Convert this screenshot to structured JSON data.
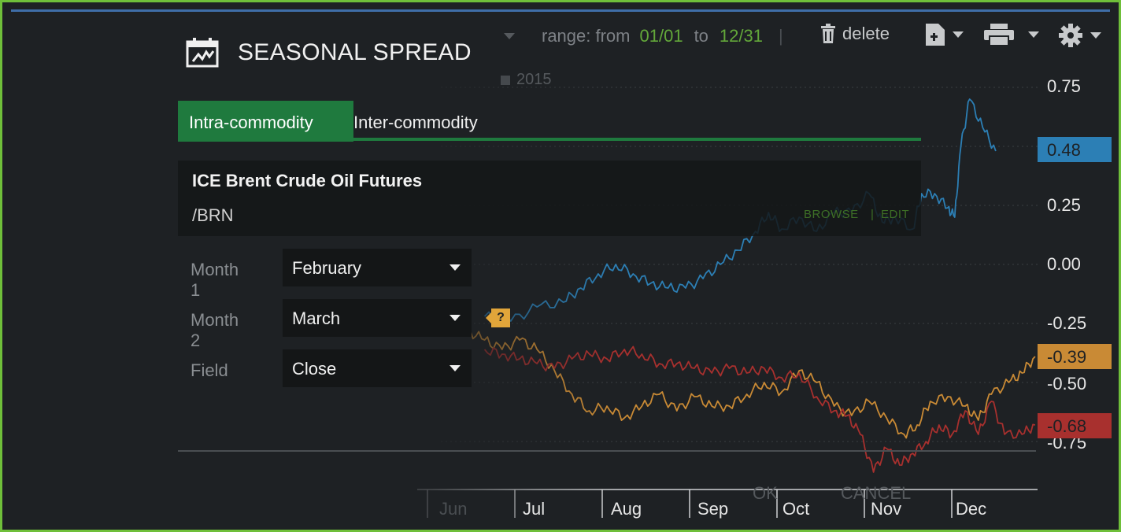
{
  "dialog": {
    "title": "SEASONAL SPREAD",
    "tabs": [
      "Intra-commodity",
      "Inter-commodity"
    ],
    "contract": {
      "name": "ICE Brent Crude Oil Futures",
      "symbol": "/BRN",
      "browse": "BROWSE",
      "separator": "|",
      "edit": "EDIT"
    },
    "month1": {
      "label": "Month 1",
      "value": "February"
    },
    "month2": {
      "label": "Month 2",
      "value": "March"
    },
    "field": {
      "label": "Field",
      "value": "Close"
    },
    "help": "?",
    "ok": "OK",
    "cancel": "CANCEL"
  },
  "toolbar": {
    "range_label": "range: from",
    "from": "01/01",
    "to_label": "to",
    "to": "12/31",
    "divider": "|",
    "delete": "delete",
    "icons": [
      "calendar-chart-icon",
      "trash-icon",
      "export-file-icon",
      "printer-icon",
      "gear-icon"
    ]
  },
  "legend": {
    "label": "2015"
  },
  "colors": {
    "blue": "#2c7fb5",
    "orange": "#c98a35",
    "red": "#a8302e",
    "accent_green": "#1f7a3e",
    "frame": "#6fbf3a"
  },
  "chart_data": {
    "type": "line",
    "y_ticks": [
      "0.75",
      "0.25",
      "0.00",
      "-0.25",
      "-0.50",
      "-0.75"
    ],
    "x_ticks": [
      "Jun",
      "Jul",
      "Aug",
      "Sep",
      "Oct",
      "Nov",
      "Dec"
    ],
    "ylim": [
      -0.95,
      0.8
    ],
    "grid": true,
    "badges": [
      {
        "value": "0.48",
        "color": "#2c7fb5"
      },
      {
        "value": "-0.39",
        "color": "#c98a35"
      },
      {
        "value": "-0.68",
        "color": "#a8302e"
      }
    ],
    "series": [
      {
        "color": "#2c7fb5",
        "points": [
          [
            6.6,
            -0.22
          ],
          [
            6.9,
            -0.24
          ],
          [
            7.2,
            -0.18
          ],
          [
            7.5,
            -0.16
          ],
          [
            7.7,
            -0.1
          ],
          [
            7.9,
            -0.04
          ],
          [
            8.1,
            0.0
          ],
          [
            8.3,
            -0.04
          ],
          [
            8.5,
            -0.08
          ],
          [
            8.7,
            -0.1
          ],
          [
            8.9,
            -0.1
          ],
          [
            9.1,
            -0.06
          ],
          [
            9.3,
            0.0
          ],
          [
            9.5,
            0.06
          ],
          [
            9.7,
            0.14
          ],
          [
            9.85,
            0.22
          ],
          [
            10.0,
            0.15
          ],
          [
            10.2,
            0.2
          ],
          [
            10.4,
            0.14
          ],
          [
            10.6,
            0.22
          ],
          [
            10.8,
            0.22
          ],
          [
            11.0,
            0.3
          ],
          [
            11.15,
            0.18
          ],
          [
            11.3,
            0.2
          ],
          [
            11.5,
            0.15
          ],
          [
            11.6,
            0.3
          ],
          [
            11.75,
            0.3
          ],
          [
            11.9,
            0.24
          ],
          [
            11.98,
            0.2
          ],
          [
            12.05,
            0.5
          ],
          [
            12.15,
            0.7
          ],
          [
            12.3,
            0.58
          ],
          [
            12.45,
            0.48
          ]
        ]
      },
      {
        "color": "#c98a35",
        "points": [
          [
            6.4,
            -0.28
          ],
          [
            6.6,
            -0.32
          ],
          [
            6.8,
            -0.36
          ],
          [
            7.0,
            -0.32
          ],
          [
            7.2,
            -0.36
          ],
          [
            7.4,
            -0.45
          ],
          [
            7.6,
            -0.55
          ],
          [
            7.8,
            -0.62
          ],
          [
            8.0,
            -0.6
          ],
          [
            8.2,
            -0.65
          ],
          [
            8.4,
            -0.6
          ],
          [
            8.6,
            -0.55
          ],
          [
            8.8,
            -0.62
          ],
          [
            9.0,
            -0.56
          ],
          [
            9.2,
            -0.6
          ],
          [
            9.4,
            -0.6
          ],
          [
            9.6,
            -0.55
          ],
          [
            9.8,
            -0.5
          ],
          [
            10.0,
            -0.54
          ],
          [
            10.2,
            -0.45
          ],
          [
            10.4,
            -0.5
          ],
          [
            10.6,
            -0.6
          ],
          [
            10.8,
            -0.64
          ],
          [
            11.0,
            -0.58
          ],
          [
            11.2,
            -0.65
          ],
          [
            11.4,
            -0.72
          ],
          [
            11.55,
            -0.68
          ],
          [
            11.7,
            -0.58
          ],
          [
            11.9,
            -0.56
          ],
          [
            12.1,
            -0.6
          ],
          [
            12.25,
            -0.66
          ],
          [
            12.4,
            -0.55
          ],
          [
            12.6,
            -0.5
          ],
          [
            12.75,
            -0.46
          ],
          [
            12.9,
            -0.39
          ]
        ]
      },
      {
        "color": "#a8302e",
        "points": [
          [
            6.6,
            -0.36
          ],
          [
            6.8,
            -0.38
          ],
          [
            7.0,
            -0.4
          ],
          [
            7.2,
            -0.42
          ],
          [
            7.4,
            -0.44
          ],
          [
            7.6,
            -0.4
          ],
          [
            7.8,
            -0.38
          ],
          [
            8.0,
            -0.4
          ],
          [
            8.2,
            -0.36
          ],
          [
            8.4,
            -0.38
          ],
          [
            8.6,
            -0.42
          ],
          [
            8.8,
            -0.42
          ],
          [
            9.0,
            -0.44
          ],
          [
            9.2,
            -0.46
          ],
          [
            9.4,
            -0.44
          ],
          [
            9.6,
            -0.46
          ],
          [
            9.8,
            -0.44
          ],
          [
            10.0,
            -0.48
          ],
          [
            10.2,
            -0.46
          ],
          [
            10.4,
            -0.56
          ],
          [
            10.6,
            -0.62
          ],
          [
            10.75,
            -0.64
          ],
          [
            10.9,
            -0.72
          ],
          [
            11.05,
            -0.88
          ],
          [
            11.2,
            -0.78
          ],
          [
            11.35,
            -0.85
          ],
          [
            11.5,
            -0.8
          ],
          [
            11.65,
            -0.75
          ],
          [
            11.8,
            -0.68
          ],
          [
            11.95,
            -0.72
          ],
          [
            12.1,
            -0.62
          ],
          [
            12.25,
            -0.72
          ],
          [
            12.4,
            -0.58
          ],
          [
            12.55,
            -0.72
          ],
          [
            12.75,
            -0.72
          ],
          [
            12.9,
            -0.68
          ]
        ]
      }
    ]
  }
}
